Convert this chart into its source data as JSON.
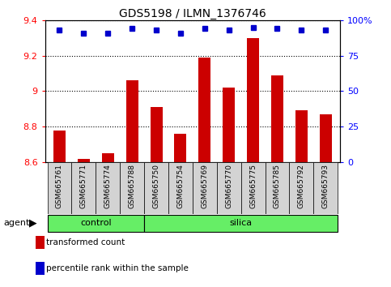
{
  "title": "GDS5198 / ILMN_1376746",
  "samples": [
    "GSM665761",
    "GSM665771",
    "GSM665774",
    "GSM665788",
    "GSM665750",
    "GSM665754",
    "GSM665769",
    "GSM665770",
    "GSM665775",
    "GSM665785",
    "GSM665792",
    "GSM665793"
  ],
  "red_values": [
    8.78,
    8.62,
    8.65,
    9.06,
    8.91,
    8.76,
    9.19,
    9.02,
    9.3,
    9.09,
    8.89,
    8.87
  ],
  "blue_values": [
    93,
    91,
    91,
    94,
    93,
    91,
    94,
    93,
    95,
    94,
    93,
    93
  ],
  "ylim_left": [
    8.6,
    9.4
  ],
  "ylim_right": [
    0,
    100
  ],
  "yticks_left": [
    8.6,
    8.8,
    9.0,
    9.2,
    9.4
  ],
  "ytick_labels_left": [
    "8.6",
    "8.8",
    "9",
    "9.2",
    "9.4"
  ],
  "yticks_right": [
    0,
    25,
    50,
    75,
    100
  ],
  "ytick_labels_right": [
    "0",
    "25",
    "50",
    "75",
    "100%"
  ],
  "control_indices": [
    0,
    1,
    2,
    3
  ],
  "silica_indices": [
    4,
    5,
    6,
    7,
    8,
    9,
    10,
    11
  ],
  "bar_color": "#cc0000",
  "dot_color": "#0000cc",
  "group_color": "#66ee66",
  "tick_bg_color": "#d3d3d3",
  "agent_label": "agent",
  "control_label": "control",
  "silica_label": "silica",
  "legend_red": "transformed count",
  "legend_blue": "percentile rank within the sample",
  "bar_width": 0.5,
  "dot_size": 5
}
